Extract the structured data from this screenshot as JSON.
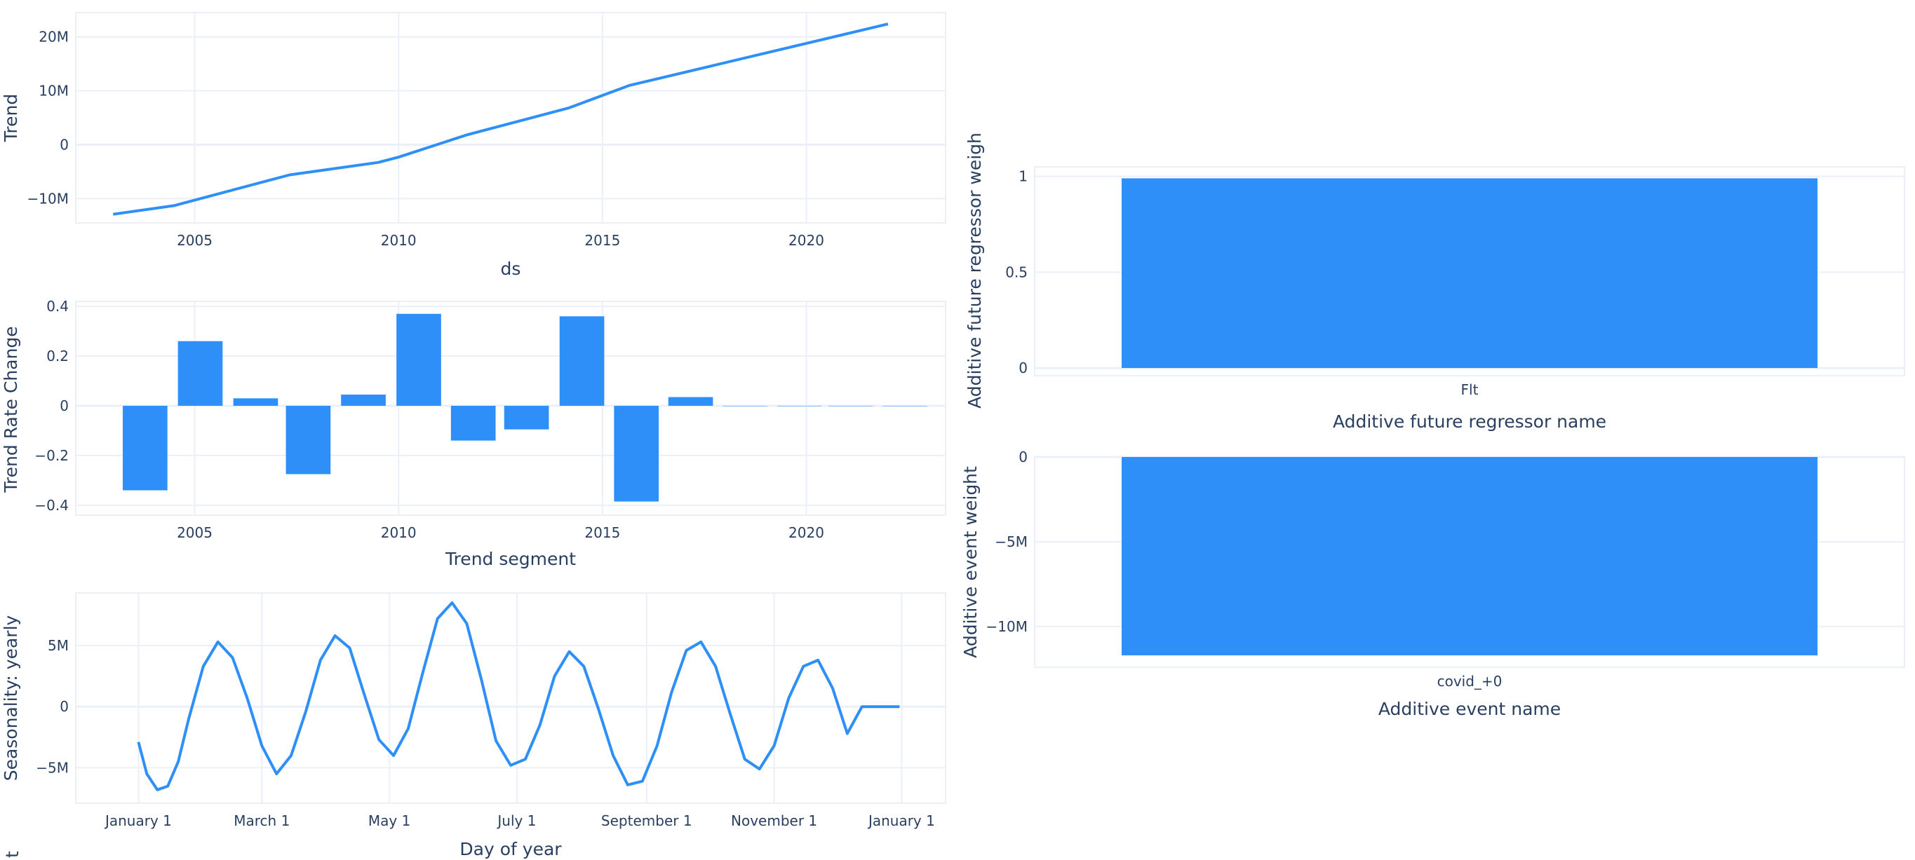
{
  "colors": {
    "series": "#2d8ff7",
    "grid": "#ebf0f8",
    "frame": "#ebf0f8",
    "text": "#2a3f5f"
  },
  "chart_data": [
    {
      "id": "trend",
      "type": "line",
      "xlabel": "ds",
      "ylabel": "Trend",
      "x_type": "date",
      "xlim": [
        "2002-02-01",
        "2023-06-01"
      ],
      "ylim": [
        -14500000,
        24500000
      ],
      "xticks": [
        {
          "value": "2005-01-01",
          "label": "2005"
        },
        {
          "value": "2010-01-01",
          "label": "2010"
        },
        {
          "value": "2015-01-01",
          "label": "2015"
        },
        {
          "value": "2020-01-01",
          "label": "2020"
        }
      ],
      "yticks": [
        {
          "value": 20000000,
          "label": "20M"
        },
        {
          "value": 10000000,
          "label": "10M"
        },
        {
          "value": 0,
          "label": "0"
        },
        {
          "value": -10000000,
          "label": "−10M"
        }
      ],
      "x": [
        "2003-01-01",
        "2004-07-01",
        "2007-05-01",
        "2009-07-01",
        "2010-01-01",
        "2011-09-01",
        "2014-03-01",
        "2015-09-01",
        "2022-01-01"
      ],
      "y": [
        -12900000,
        -11300000,
        -5600000,
        -3300000,
        -2300000,
        1800000,
        6800000,
        11000000,
        22400000
      ]
    },
    {
      "id": "trend-rate-change",
      "type": "bar",
      "xlabel": "Trend segment",
      "ylabel": "Trend Rate Change",
      "x_type": "date",
      "xlim": [
        "2002-02-01",
        "2023-06-01"
      ],
      "ylim": [
        -0.44,
        0.42
      ],
      "xticks": [
        {
          "value": "2005-01-01",
          "label": "2005"
        },
        {
          "value": "2010-01-01",
          "label": "2010"
        },
        {
          "value": "2015-01-01",
          "label": "2015"
        },
        {
          "value": "2020-01-01",
          "label": "2020"
        }
      ],
      "yticks": [
        {
          "value": 0.4,
          "label": "0.4"
        },
        {
          "value": 0.2,
          "label": "0.2"
        },
        {
          "value": 0,
          "label": "0"
        },
        {
          "value": -0.2,
          "label": "−0.2"
        },
        {
          "value": -0.4,
          "label": "−0.4"
        }
      ],
      "bar_width_days": 400,
      "x": [
        "2003-10-15",
        "2005-02-20",
        "2006-07-01",
        "2007-10-15",
        "2009-02-20",
        "2010-07-01",
        "2011-11-01",
        "2013-02-20",
        "2014-07-01",
        "2015-11-01",
        "2017-03-01",
        "2018-07-01",
        "2019-11-01",
        "2021-02-01",
        "2022-06-01"
      ],
      "values": [
        -0.34,
        0.26,
        0.03,
        -0.275,
        0.045,
        0.37,
        -0.14,
        -0.095,
        0.36,
        -0.385,
        0.035,
        0.0,
        0.0,
        0.0,
        0.0
      ]
    },
    {
      "id": "yearly-seasonality",
      "type": "line",
      "xlabel": "Day of year",
      "ylabel": "Seasonality: yearly",
      "x_type": "date",
      "xlim": [
        "2016-12-02",
        "2018-01-22"
      ],
      "ylim": [
        -7900000,
        9300000
      ],
      "xticks": [
        {
          "value": "2017-01-01",
          "label": "January  1"
        },
        {
          "value": "2017-03-01",
          "label": "March  1"
        },
        {
          "value": "2017-05-01",
          "label": "May  1"
        },
        {
          "value": "2017-07-01",
          "label": "July  1"
        },
        {
          "value": "2017-09-01",
          "label": "September  1"
        },
        {
          "value": "2017-11-01",
          "label": "November  1"
        },
        {
          "value": "2018-01-01",
          "label": "January  1"
        }
      ],
      "yticks": [
        {
          "value": 5000000,
          "label": "5M"
        },
        {
          "value": 0,
          "label": "0"
        },
        {
          "value": -5000000,
          "label": "−5M"
        }
      ],
      "x": [
        "2017-01-01",
        "2017-01-05",
        "2017-01-10",
        "2017-01-15",
        "2017-01-20",
        "2017-01-25",
        "2017-02-01",
        "2017-02-08",
        "2017-02-15",
        "2017-02-22",
        "2017-03-01",
        "2017-03-08",
        "2017-03-15",
        "2017-03-22",
        "2017-03-29",
        "2017-04-05",
        "2017-04-12",
        "2017-04-19",
        "2017-04-26",
        "2017-05-03",
        "2017-05-10",
        "2017-05-17",
        "2017-05-24",
        "2017-05-31",
        "2017-06-07",
        "2017-06-14",
        "2017-06-21",
        "2017-06-28",
        "2017-07-05",
        "2017-07-12",
        "2017-07-19",
        "2017-07-26",
        "2017-08-02",
        "2017-08-09",
        "2017-08-16",
        "2017-08-23",
        "2017-08-30",
        "2017-09-06",
        "2017-09-13",
        "2017-09-20",
        "2017-09-27",
        "2017-10-04",
        "2017-10-11",
        "2017-10-18",
        "2017-10-25",
        "2017-11-01",
        "2017-11-08",
        "2017-11-15",
        "2017-11-22",
        "2017-11-29",
        "2017-12-06",
        "2017-12-13",
        "2017-12-20",
        "2017-12-27",
        "2017-12-31"
      ],
      "y": [
        -2900000,
        -5500000,
        -6800000,
        -6500000,
        -4500000,
        -1000000,
        3300000,
        5300000,
        4000000,
        700000,
        -3200000,
        -5500000,
        -4000000,
        -400000,
        3800000,
        5800000,
        4800000,
        1000000,
        -2700000,
        -4000000,
        -1800000,
        2800000,
        7200000,
        8500000,
        6800000,
        2200000,
        -2800000,
        -4800000,
        -4300000,
        -1500000,
        2500000,
        4500000,
        3300000,
        -200000,
        -4000000,
        -6400000,
        -6100000,
        -3200000,
        1200000,
        4600000,
        5300000,
        3300000,
        -600000,
        -4300000,
        -5100000,
        -3200000,
        700000,
        3300000,
        3800000,
        1500000,
        -2200000,
        0,
        0,
        0,
        0
      ]
    },
    {
      "id": "future-regressor",
      "type": "bar",
      "xlabel": "Additive future regressor name",
      "ylabel": "Additive future regressor weigh",
      "categories": [
        "Flt"
      ],
      "values": [
        0.99
      ],
      "ylim": [
        -0.04,
        1.05
      ],
      "yticks": [
        {
          "value": 1,
          "label": "1"
        },
        {
          "value": 0.5,
          "label": "0.5"
        },
        {
          "value": 0,
          "label": "0"
        }
      ]
    },
    {
      "id": "event",
      "type": "bar",
      "xlabel": "Additive event name",
      "ylabel": "Additive event weight",
      "categories": [
        "covid_+0"
      ],
      "values": [
        -11700000
      ],
      "ylim": [
        -12400000,
        0
      ],
      "yticks": [
        {
          "value": 0,
          "label": "0"
        },
        {
          "value": -5000000,
          "label": "−5M"
        },
        {
          "value": -10000000,
          "label": "−10M"
        }
      ]
    }
  ],
  "stray_label": "t"
}
